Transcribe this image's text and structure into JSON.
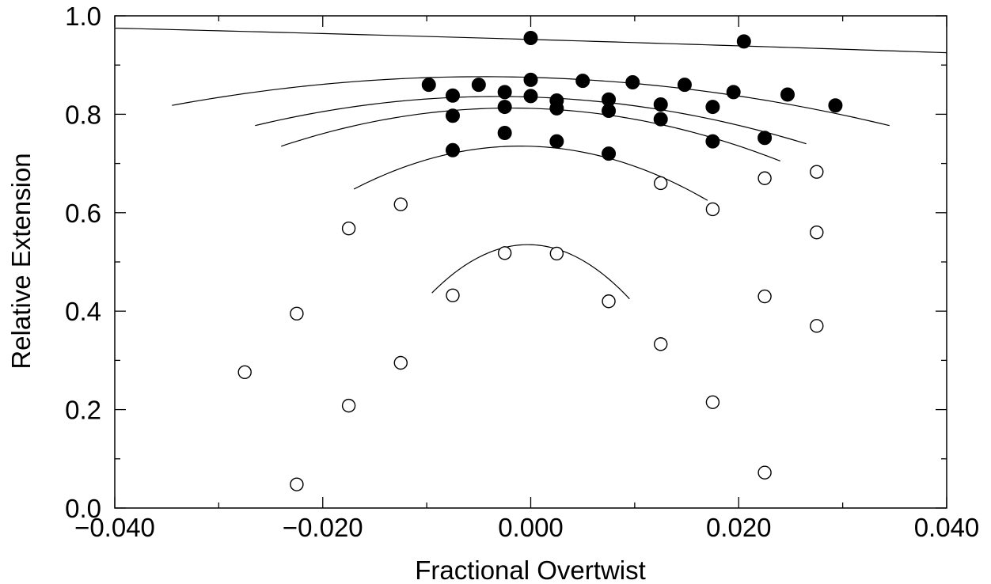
{
  "chart_data": {
    "type": "scatter",
    "xlabel": "Fractional Overtwist",
    "ylabel": "Relative Extension",
    "xlim": [
      -0.04,
      0.04
    ],
    "ylim": [
      0.0,
      1.0
    ],
    "x_ticks": [
      -0.04,
      -0.02,
      0.0,
      0.02,
      0.04
    ],
    "x_tick_labels": [
      "−0.040",
      "−0.020",
      "0.000",
      "0.020",
      "0.040"
    ],
    "y_ticks": [
      0.0,
      0.2,
      0.4,
      0.6,
      0.8,
      1.0
    ],
    "y_tick_labels": [
      "0.0",
      "0.2",
      "0.4",
      "0.6",
      "0.8",
      "1.0"
    ],
    "grid": false,
    "series": [
      {
        "marker": "filled-circle",
        "color": "#000000",
        "points": [
          [
            0.0,
            0.955
          ],
          [
            0.0205,
            0.948
          ],
          [
            -0.0098,
            0.86
          ],
          [
            -0.005,
            0.86
          ],
          [
            0.0,
            0.87
          ],
          [
            0.005,
            0.868
          ],
          [
            0.0098,
            0.865
          ],
          [
            0.0148,
            0.86
          ],
          [
            0.0195,
            0.845
          ],
          [
            0.0247,
            0.84
          ],
          [
            0.0293,
            0.818
          ],
          [
            -0.0075,
            0.838
          ],
          [
            -0.0025,
            0.845
          ],
          [
            0.0,
            0.837
          ],
          [
            0.0025,
            0.828
          ],
          [
            0.0075,
            0.83
          ],
          [
            0.0125,
            0.82
          ],
          [
            0.0175,
            0.815
          ],
          [
            -0.0075,
            0.797
          ],
          [
            -0.0025,
            0.815
          ],
          [
            0.0025,
            0.812
          ],
          [
            0.0075,
            0.807
          ],
          [
            0.0125,
            0.79
          ],
          [
            0.0225,
            0.752
          ],
          [
            -0.0025,
            0.762
          ],
          [
            0.0025,
            0.745
          ],
          [
            0.0175,
            0.745
          ],
          [
            -0.0075,
            0.727
          ],
          [
            0.0075,
            0.72
          ]
        ]
      },
      {
        "marker": "open-circle",
        "color": "#000000",
        "points": [
          [
            0.0125,
            0.66
          ],
          [
            0.0175,
            0.607
          ],
          [
            0.0225,
            0.67
          ],
          [
            0.0275,
            0.683
          ],
          [
            -0.0125,
            0.617
          ],
          [
            -0.0175,
            0.568
          ],
          [
            0.0275,
            0.56
          ],
          [
            -0.0025,
            0.518
          ],
          [
            0.0025,
            0.517
          ],
          [
            -0.0075,
            0.432
          ],
          [
            0.0075,
            0.42
          ],
          [
            0.0225,
            0.43
          ],
          [
            -0.0225,
            0.395
          ],
          [
            0.0275,
            0.37
          ],
          [
            0.0125,
            0.333
          ],
          [
            -0.0125,
            0.295
          ],
          [
            -0.0275,
            0.276
          ],
          [
            -0.0175,
            0.208
          ],
          [
            0.0175,
            0.215
          ],
          [
            -0.0225,
            0.048
          ],
          [
            0.0225,
            0.072
          ]
        ]
      }
    ],
    "fit_curves": [
      {
        "form": "quadratic",
        "points": [
          [
            -0.04,
            0.975
          ],
          [
            0.0,
            0.952
          ],
          [
            0.04,
            0.925
          ]
        ]
      },
      {
        "form": "quadratic",
        "points": [
          [
            -0.0345,
            0.818
          ],
          [
            0.0,
            0.875
          ],
          [
            0.0345,
            0.777
          ]
        ]
      },
      {
        "form": "quadratic",
        "points": [
          [
            -0.0265,
            0.777
          ],
          [
            0.0,
            0.835
          ],
          [
            0.0265,
            0.74
          ]
        ]
      },
      {
        "form": "quadratic",
        "points": [
          [
            -0.024,
            0.735
          ],
          [
            0.0,
            0.812
          ],
          [
            0.024,
            0.705
          ]
        ]
      },
      {
        "form": "quadratic",
        "points": [
          [
            -0.017,
            0.648
          ],
          [
            0.0,
            0.735
          ],
          [
            0.017,
            0.625
          ]
        ]
      },
      {
        "form": "quadratic",
        "points": [
          [
            -0.0095,
            0.437
          ],
          [
            0.0,
            0.535
          ],
          [
            0.0095,
            0.425
          ]
        ]
      }
    ]
  }
}
